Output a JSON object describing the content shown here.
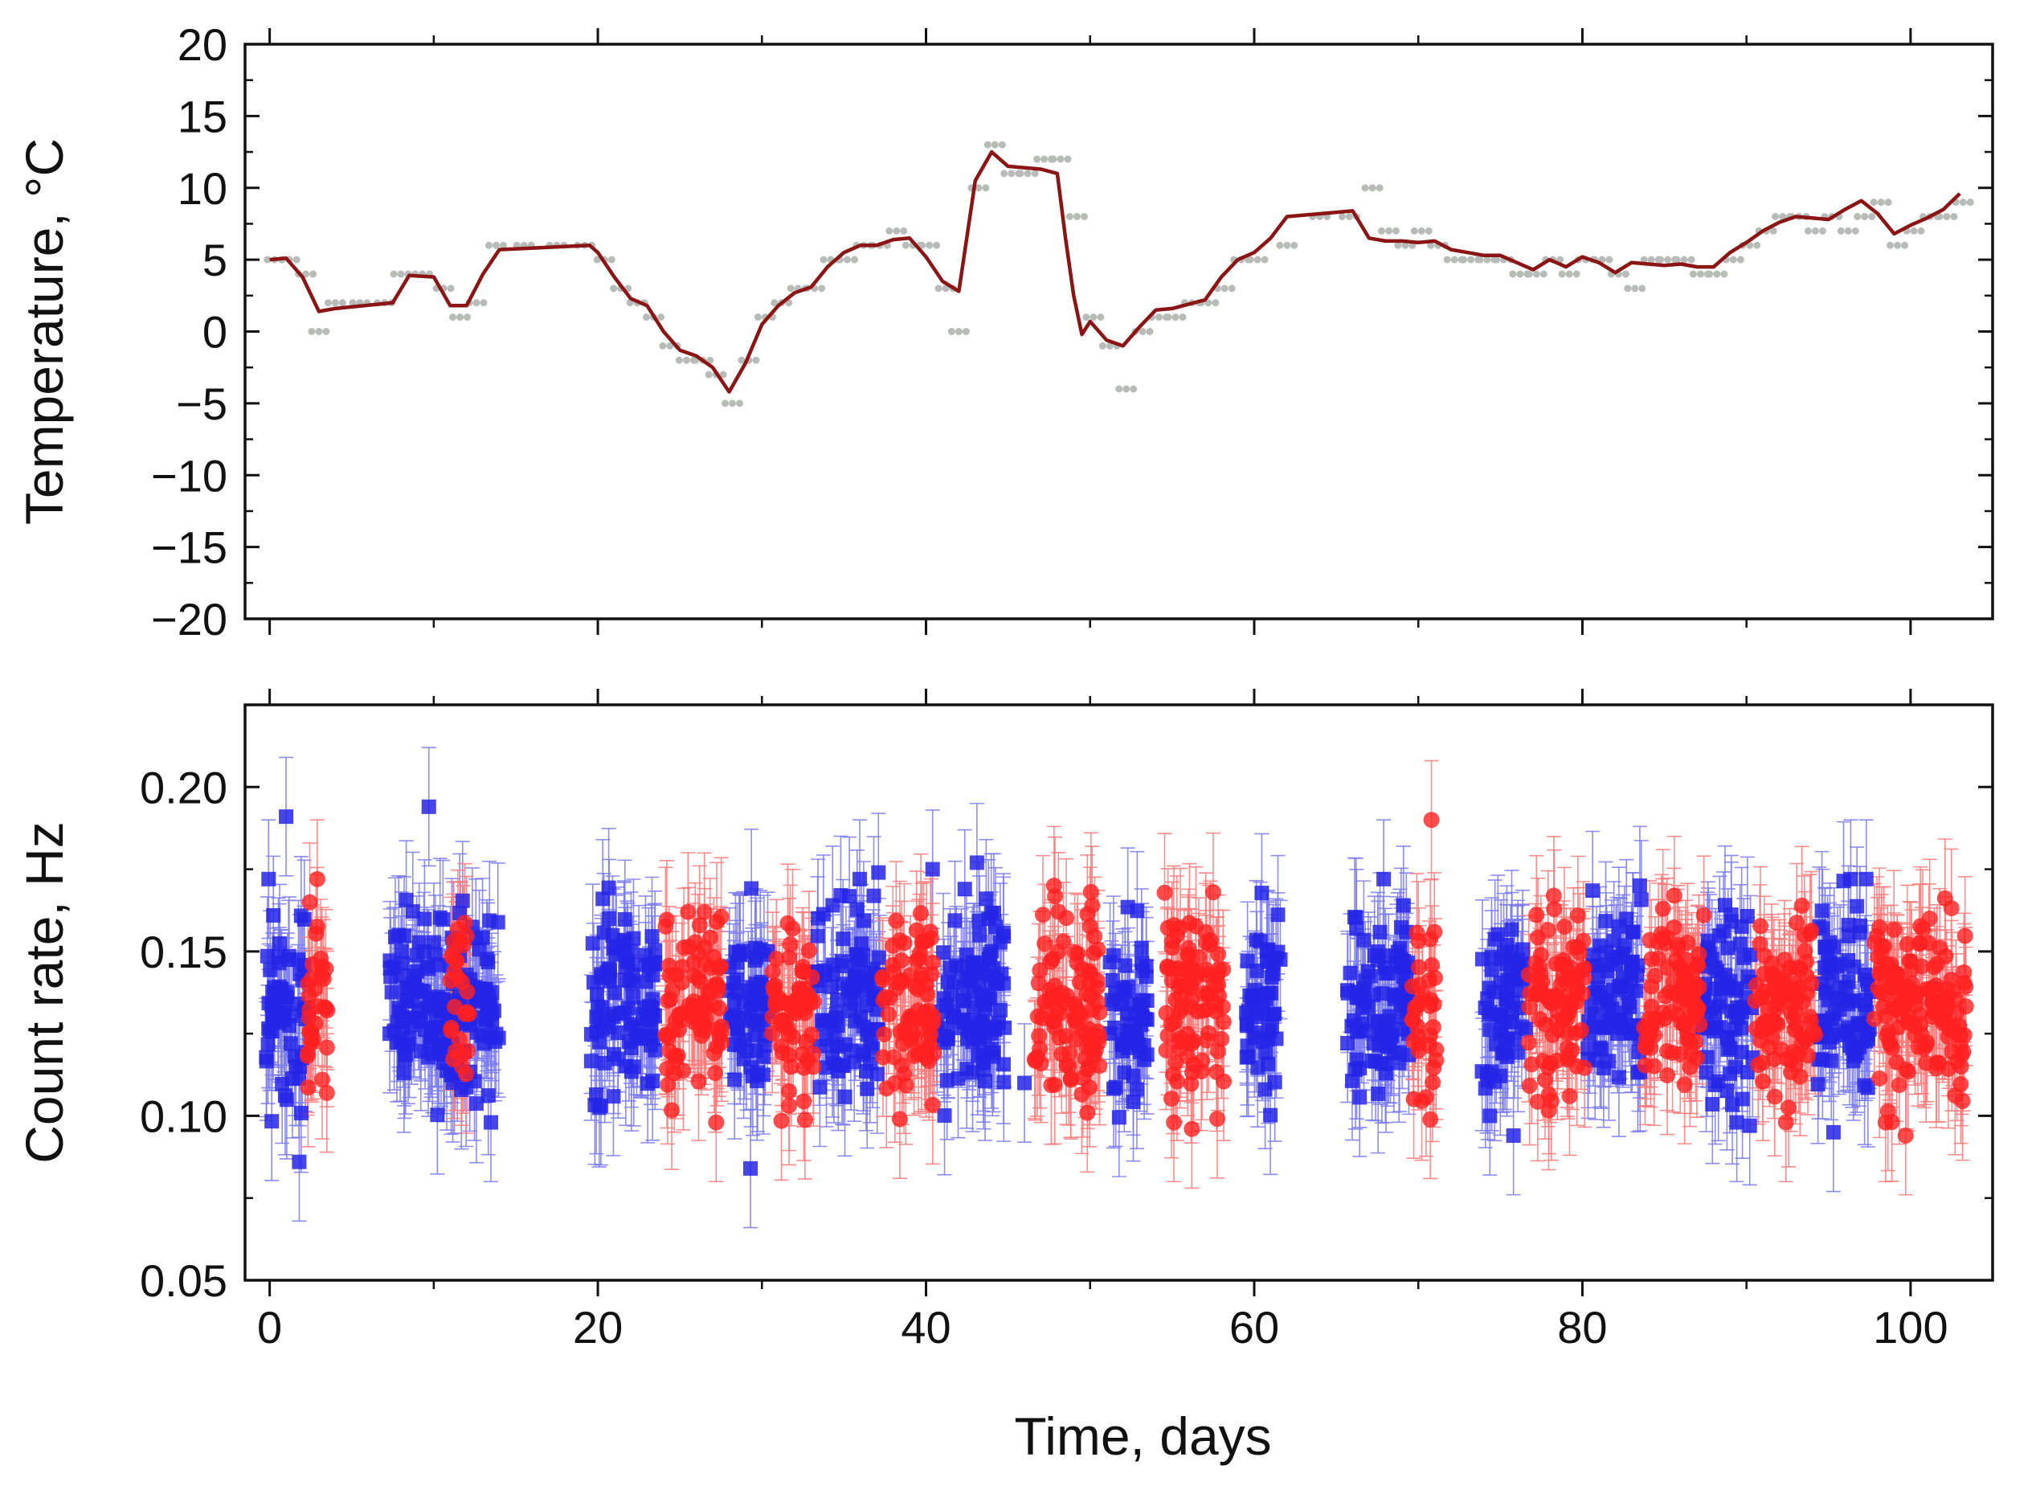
{
  "chart_data": [
    {
      "type": "line",
      "panel": "top",
      "title": "",
      "xlabel": "",
      "ylabel": "Temperature, °C",
      "xlim": [
        -1.5,
        105
      ],
      "ylim": [
        -20,
        20
      ],
      "x_ticks": [
        0,
        20,
        40,
        60,
        80,
        100
      ],
      "y_ticks": [
        -20,
        -15,
        -10,
        -5,
        0,
        5,
        10,
        15,
        20
      ],
      "y_tick_labels": [
        "−20",
        "−15",
        "−10",
        "−5",
        "0",
        "5",
        "10",
        "15",
        "20"
      ],
      "grid": false,
      "series": [
        {
          "name": "smoothed temperature",
          "style": "line",
          "color": "#8b1414",
          "x": [
            0,
            1,
            2,
            3,
            4,
            7.5,
            8.5,
            10,
            11,
            12,
            13,
            14,
            19.5,
            20,
            21,
            22,
            23,
            24,
            25,
            26,
            27,
            28,
            29,
            30,
            31,
            32,
            33,
            34,
            35,
            36,
            37,
            38,
            39,
            40,
            41,
            42,
            43,
            44,
            45,
            47,
            48,
            48.5,
            49,
            49.5,
            50,
            51,
            52,
            53,
            54,
            55,
            57,
            58,
            59,
            60,
            61,
            62,
            66,
            67,
            68,
            69,
            70,
            71,
            72,
            73,
            74,
            75,
            76,
            77,
            78,
            79,
            80,
            81,
            82,
            83,
            84,
            85,
            86,
            87,
            88,
            89,
            90,
            91,
            92,
            93,
            94,
            95,
            96,
            97,
            98,
            99,
            100,
            101,
            102,
            103
          ],
          "y": [
            5,
            5.1,
            3.8,
            1.4,
            1.6,
            2,
            3.9,
            3.8,
            1.8,
            1.8,
            4,
            5.7,
            6,
            5.5,
            3.8,
            2.3,
            1.8,
            0,
            -1.3,
            -1.7,
            -2.5,
            -4.2,
            -2.2,
            0.5,
            1.8,
            2.7,
            3.1,
            4.5,
            5.5,
            6,
            6,
            6.4,
            6.5,
            5.2,
            3.5,
            2.8,
            10.5,
            12.5,
            11.5,
            11.3,
            11,
            6.5,
            2.5,
            -0.2,
            0.7,
            -0.6,
            -1,
            0.3,
            1.5,
            1.6,
            2.2,
            3.8,
            5,
            5.5,
            6.5,
            8,
            8.4,
            6.5,
            6.3,
            6.3,
            6.2,
            6.3,
            5.7,
            5.5,
            5.3,
            5.3,
            4.8,
            4.3,
            5,
            4.5,
            5.2,
            4.8,
            4.1,
            4.8,
            4.7,
            4.6,
            4.7,
            4.5,
            4.5,
            5.5,
            6.2,
            7,
            7.6,
            8,
            7.9,
            7.8,
            8.5,
            9.1,
            8.2,
            6.8,
            7.4,
            7.9,
            8.5,
            9.6
          ]
        },
        {
          "name": "measured temperature",
          "style": "scatter",
          "color": "#b7bcb9",
          "x": [
            0.3,
            1.2,
            2.2,
            3,
            4,
            5.5,
            7,
            8,
            9.3,
            10.6,
            11.6,
            12.6,
            13.8,
            15.5,
            17.5,
            19.2,
            20.4,
            21.4,
            22.4,
            23.4,
            24.4,
            25.4,
            26.4,
            27.2,
            28.2,
            29.2,
            30.2,
            31.2,
            32.2,
            33.2,
            34.2,
            35.2,
            36.2,
            37.2,
            38.2,
            39.2,
            40.2,
            41.2,
            42,
            43.2,
            44.2,
            45.2,
            46.2,
            47.2,
            48.2,
            49.2,
            50.2,
            51.2,
            52.2,
            53.2,
            54.2,
            55.2,
            56.2,
            57.2,
            58.2,
            59.2,
            60.2,
            62,
            64,
            65.8,
            67.2,
            68.2,
            69.2,
            70.2,
            71.2,
            72.2,
            73.2,
            74.2,
            75.2,
            76.2,
            77.2,
            78.2,
            79.2,
            80.2,
            81.2,
            82.2,
            83.2,
            84.2,
            85.2,
            86.2,
            87.2,
            88.2,
            89.2,
            90.2,
            91.2,
            92.2,
            93.2,
            94.2,
            95.2,
            96.2,
            97.2,
            98.2,
            99.2,
            100.2,
            101.2,
            102.2,
            103.2
          ],
          "y": [
            5,
            5,
            4,
            0,
            2,
            2,
            2,
            4,
            4,
            3,
            1,
            2,
            6,
            6,
            6,
            6,
            5,
            3,
            2,
            1,
            -1,
            -2,
            -2,
            -3,
            -5,
            -2,
            1,
            2,
            3,
            3,
            5,
            5,
            6,
            6,
            7,
            6,
            6,
            3,
            0,
            10,
            13,
            11,
            11,
            12,
            12,
            8,
            1,
            -1,
            -4,
            0,
            1,
            1,
            2,
            2,
            3,
            5,
            5,
            6,
            8,
            8,
            10,
            7,
            6,
            7,
            6,
            5,
            5,
            5,
            5,
            4,
            4,
            5,
            4,
            5,
            5,
            4,
            3,
            5,
            5,
            5,
            4,
            4,
            5,
            6,
            7,
            8,
            8,
            7,
            8,
            7,
            8,
            9,
            6,
            7,
            8,
            8,
            9
          ]
        }
      ]
    },
    {
      "type": "scatter",
      "panel": "bottom",
      "title": "",
      "xlabel": "Time, days",
      "ylabel": "Count rate, Hz",
      "xlim": [
        -1.5,
        105
      ],
      "ylim": [
        0.05,
        0.225
      ],
      "x_ticks": [
        0,
        20,
        40,
        60,
        80,
        100
      ],
      "y_ticks": [
        0.05,
        0.1,
        0.15,
        0.2
      ],
      "y_tick_labels": [
        "0.05",
        "0.10",
        "0.15",
        "0.20"
      ],
      "grid": false,
      "error_bar_typical_hz": 0.018,
      "series": [
        {
          "name": "blue squares",
          "marker": "square",
          "color": "#2424e6",
          "segments_days": [
            [
              -0.3,
              2.2
            ],
            [
              7.3,
              14.1
            ],
            [
              19.4,
              23.5
            ],
            [
              27.8,
              30.5
            ],
            [
              33.3,
              37.2
            ],
            [
              40.6,
              44.8
            ],
            [
              51.2,
              53.6
            ],
            [
              59.5,
              61.6
            ],
            [
              65.6,
              69.5
            ],
            [
              73.8,
              76.6
            ],
            [
              80.3,
              83.6
            ],
            [
              87.3,
              90.4
            ],
            [
              94.3,
              97.6
            ]
          ],
          "outliers": {
            "x": [
              1,
              1.8,
              9.7,
              20.3,
              29.3,
              37.1,
              40.4,
              43.1,
              46,
              75.8,
              83.5,
              90.2,
              95.3,
              97.3,
              69.1
            ],
            "y": [
              0.191,
              0.086,
              0.194,
              0.166,
              0.084,
              0.174,
              0.175,
              0.177,
              0.11,
              0.094,
              0.17,
              0.097,
              0.095,
              0.172,
              0.164
            ]
          }
        },
        {
          "name": "red circles",
          "marker": "circle",
          "color": "#ff2020",
          "segments_days": [
            [
              2.3,
              3.6
            ],
            [
              11,
              12.2
            ],
            [
              24.1,
              27.6
            ],
            [
              30.6,
              33.2
            ],
            [
              37.3,
              40.5
            ],
            [
              46.5,
              50.6
            ],
            [
              54.5,
              58.2
            ],
            [
              69.6,
              71.1
            ],
            [
              76.7,
              80.2
            ],
            [
              83.7,
              87.2
            ],
            [
              90.5,
              94.2
            ],
            [
              97.7,
              103.4
            ]
          ],
          "outliers": {
            "x": [
              2.9,
              3.2,
              26.2,
              38.4,
              47.8,
              55.1,
              56.2,
              57.5,
              70.8,
              85.6,
              87.4,
              92.4,
              99.7
            ],
            "y": [
              0.172,
              0.111,
              0.158,
              0.099,
              0.17,
              0.158,
              0.096,
              0.168,
              0.19,
              0.167,
              0.161,
              0.098,
              0.094
            ]
          }
        }
      ]
    }
  ]
}
